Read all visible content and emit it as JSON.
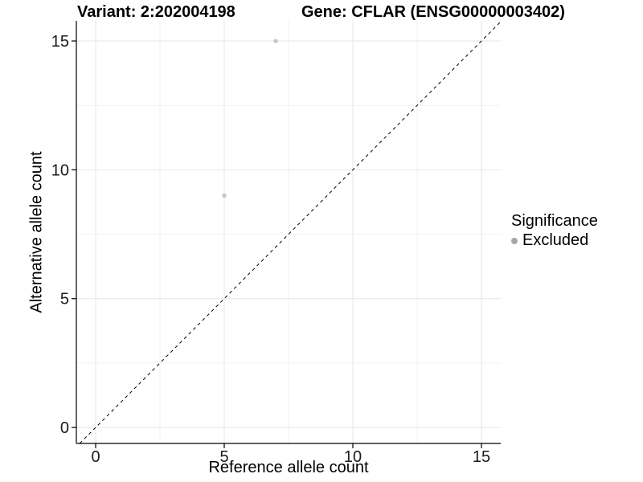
{
  "chart_data": {
    "type": "scatter",
    "titles": {
      "variant": "Variant: 2:202004198",
      "gene": "Gene: CFLAR (ENSG00000003402)"
    },
    "xlabel": "Reference allele count",
    "ylabel": "Alternative allele count",
    "x_ticks": [
      0,
      5,
      10,
      15
    ],
    "y_ticks": [
      0,
      5,
      10,
      15
    ],
    "x_minor_ticks": [
      2.5,
      7.5,
      12.5
    ],
    "y_minor_ticks": [
      2.5,
      7.5,
      12.5
    ],
    "xlim": [
      -0.75,
      15.75
    ],
    "ylim": [
      -0.62,
      15.78
    ],
    "grid": true,
    "series": [
      {
        "name": "Excluded",
        "color": "#c6c6c6",
        "points": [
          {
            "x": 7,
            "y": 15
          },
          {
            "x": 5,
            "y": 9
          }
        ]
      }
    ],
    "reference_line": {
      "slope": 1,
      "intercept": 0,
      "style": "dashed",
      "color": "#000000"
    },
    "legend": {
      "title": "Significance",
      "position": "right",
      "entries": [
        {
          "label": "Excluded",
          "color": "#a6a6a6"
        }
      ]
    },
    "colors": {
      "grid_major": "#e6e6e6",
      "grid_minor": "#f2f2f2",
      "axis": "#000000",
      "tick_text": "#1a1a1a"
    }
  }
}
